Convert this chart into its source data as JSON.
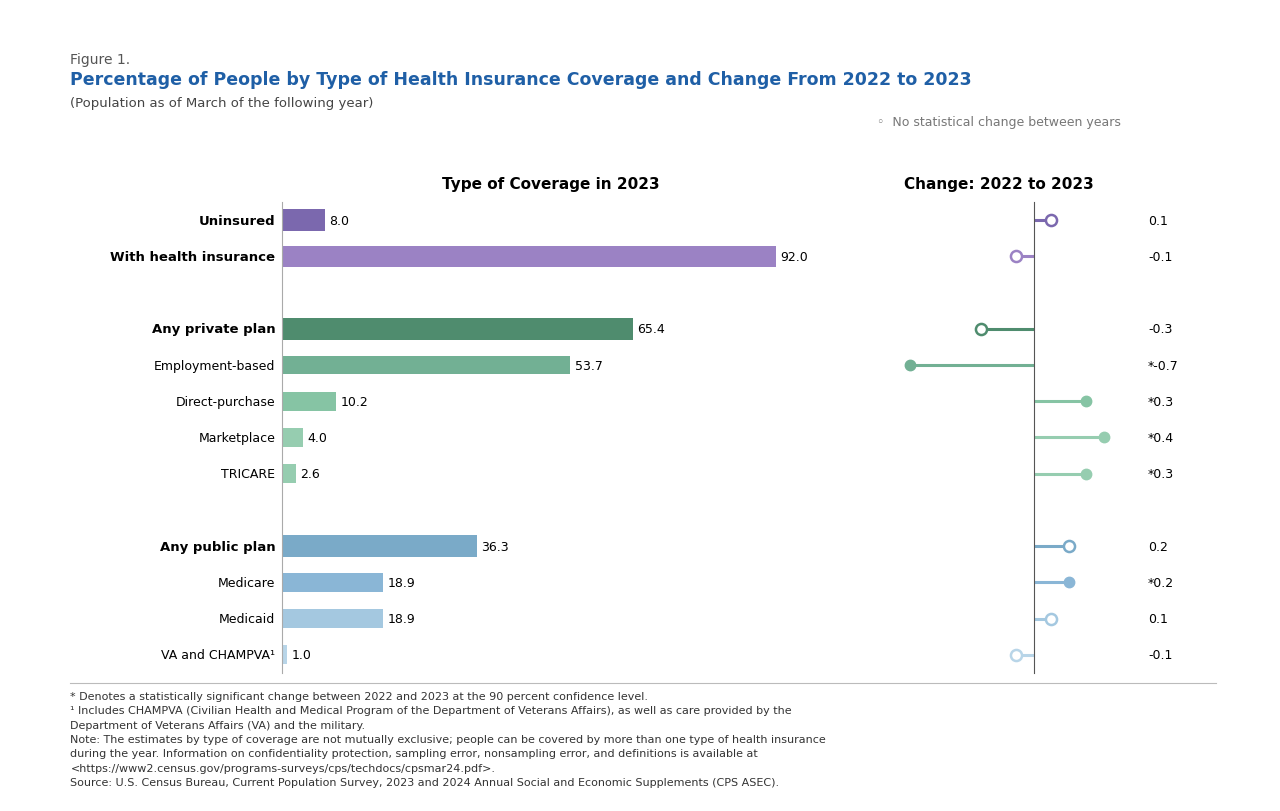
{
  "figure_label": "Figure 1.",
  "title": "Percentage of People by Type of Health Insurance Coverage and Change From 2022 to 2023",
  "subtitle": "(Population as of March of the following year)",
  "legend_text": "No statistical change between years",
  "left_panel_title": "Type of Coverage in 2023",
  "right_panel_title": "Change: 2022 to 2023",
  "categories": [
    "Uninsured",
    "With health insurance",
    "",
    "Any private plan",
    "Employment-based",
    "Direct-purchase",
    "Marketplace",
    "TRICARE",
    "",
    "Any public plan",
    "Medicare",
    "Medicaid",
    "VA and CHAMPVA¹"
  ],
  "bar_values": [
    8.0,
    92.0,
    null,
    65.4,
    53.7,
    10.2,
    4.0,
    2.6,
    null,
    36.3,
    18.9,
    18.9,
    1.0
  ],
  "bar_colors": [
    "#7b68ae",
    "#9b82c4",
    null,
    "#4f8c6e",
    "#72b094",
    "#86c4a4",
    "#96cdb0",
    "#96cdb0",
    null,
    "#7aaac8",
    "#8ab6d6",
    "#a4c8e0",
    "#b8d5e8"
  ],
  "change_values": [
    0.1,
    -0.1,
    null,
    -0.3,
    -0.7,
    0.3,
    0.4,
    0.3,
    null,
    0.2,
    0.2,
    0.1,
    -0.1
  ],
  "change_significant": [
    false,
    false,
    null,
    false,
    true,
    true,
    true,
    true,
    null,
    false,
    true,
    false,
    false
  ],
  "change_labels": [
    "0.1",
    "-0.1",
    null,
    "-0.3",
    "*-0.7",
    "*0.3",
    "*0.4",
    "*0.3",
    null,
    "0.2",
    "*0.2",
    "0.1",
    "-0.1"
  ],
  "change_colors": [
    "#7b68ae",
    "#9b82c4",
    null,
    "#4f8c6e",
    "#72b094",
    "#86c4a4",
    "#96cdb0",
    "#96cdb0",
    null,
    "#7aaac8",
    "#8ab6d6",
    "#a4c8e0",
    "#b8d5e8"
  ],
  "bold_categories": [
    0,
    1,
    3,
    9
  ],
  "sub_categories": [
    4,
    5,
    6,
    7,
    10,
    11,
    12
  ],
  "footnote1": "* Denotes a statistically significant change between 2022 and 2023 at the 90 percent confidence level.",
  "footnote2": "¹ Includes CHAMPVA (Civilian Health and Medical Program of the Department of Veterans Affairs), as well as care provided by the\nDepartment of Veterans Affairs (VA) and the military.",
  "footnote3": "Note: The estimates by type of coverage are not mutually exclusive; people can be covered by more than one type of health insurance\nduring the year. Information on confidentiality protection, sampling error, nonsampling error, and definitions is available at\n<https://www2.census.gov/programs-surveys/cps/techdocs/cpsmar24.pdf>.",
  "footnote4": "Source: U.S. Census Bureau, Current Population Survey, 2023 and 2024 Annual Social and Economic Supplements (CPS ASEC).",
  "title_color": "#1f5fa6",
  "figure_label_color": "#555555",
  "background_color": "#ffffff"
}
